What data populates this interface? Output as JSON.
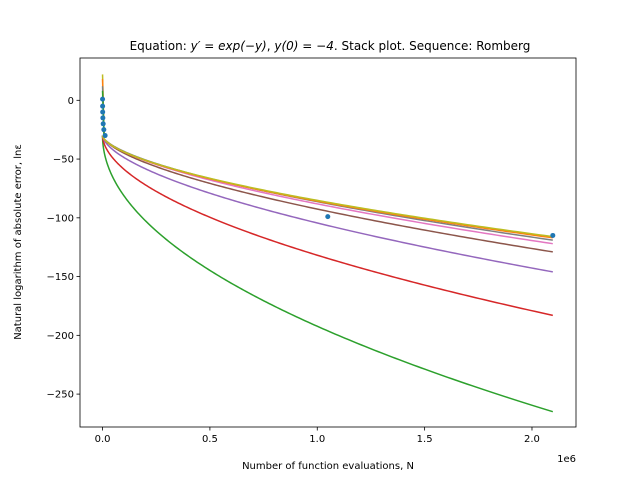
{
  "chart_data": {
    "type": "line",
    "title": "Equation: y' = exp(−y), y(0) = −4. Stack plot. Sequence: Romberg",
    "title_parts": {
      "prefix": "Equation: ",
      "eq1": "y′ = exp(−y)",
      "sep": ", ",
      "eq2": "y(0) = −4",
      "suffix": ". Stack plot. Sequence: Romberg"
    },
    "xlabel": "Number of function evaluations, N",
    "ylabel": "Natural logarithm of absolute error, lnε",
    "x_offset_label": "1e6",
    "xlim": [
      -0.105,
      2.205
    ],
    "ylim": [
      -278,
      36
    ],
    "x_ticks": [
      0,
      0.5,
      1,
      1.5,
      2
    ],
    "x_tick_labels": [
      "0.0",
      "0.5",
      "1.0",
      "1.5",
      "2.0"
    ],
    "y_ticks": [
      0,
      -50,
      -100,
      -150,
      -200,
      -250
    ],
    "y_tick_labels": [
      "0",
      "−50",
      "−100",
      "−150",
      "−200",
      "−250"
    ],
    "x_scale_note": "x values in units of 1e6",
    "curve_model": "y = y0 + (yEnd - y0) * (x / 2.097)^p",
    "series": [
      {
        "color": "#2ca02c",
        "y0": -30,
        "yEnd": -265,
        "p": 0.5
      },
      {
        "color": "#d62728",
        "y0": -30,
        "yEnd": -183,
        "p": 0.55
      },
      {
        "color": "#9467bd",
        "y0": -30,
        "yEnd": -146,
        "p": 0.6
      },
      {
        "color": "#8c564b",
        "y0": -30,
        "yEnd": -129,
        "p": 0.62
      },
      {
        "color": "#e377c2",
        "y0": -30,
        "yEnd": -122,
        "p": 0.62
      },
      {
        "color": "#7f7f7f",
        "y0": -30,
        "yEnd": -119,
        "p": 0.62
      },
      {
        "color": "#ff7f0e",
        "y0": -30,
        "yEnd": -117,
        "p": 0.6
      },
      {
        "color": "#bcbd22",
        "y0": -30,
        "yEnd": -116,
        "p": 0.6
      }
    ],
    "spikes": [
      {
        "color": "#bcbd22",
        "x": 0,
        "y": 22
      },
      {
        "color": "#ff7f0e",
        "x": 0,
        "y": 18
      },
      {
        "color": "#7f7f7f",
        "x": 0,
        "y": 12
      },
      {
        "color": "#2ca02c",
        "x": 0,
        "y": 8
      }
    ],
    "points": {
      "color": "#1f77b4",
      "x": [
        0.0001,
        0.0003,
        0.0007,
        0.0015,
        0.003,
        0.006,
        0.012,
        1.049,
        2.097
      ],
      "y": [
        1,
        -5,
        -10,
        -15,
        -20,
        -25,
        -30,
        -99,
        -115
      ]
    }
  }
}
